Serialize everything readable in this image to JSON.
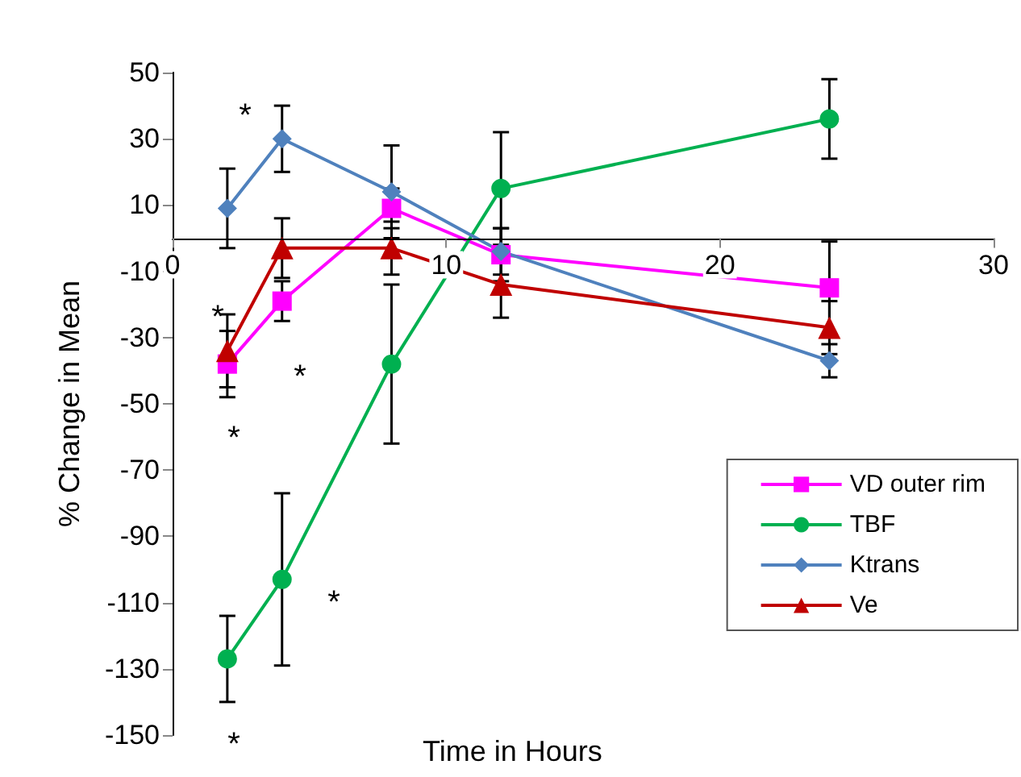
{
  "chart_data": {
    "type": "line",
    "xlabel": "Time in Hours",
    "ylabel": "% Change in Mean",
    "xlim": [
      0,
      30
    ],
    "xticks": [
      0,
      10,
      20,
      30
    ],
    "ylim": [
      -150,
      50
    ],
    "yticks": [
      -150,
      -130,
      -110,
      -90,
      -70,
      -50,
      -30,
      -10,
      10,
      30,
      50
    ],
    "grid": false,
    "legend": "right",
    "line_style": "solid",
    "x": [
      2,
      4,
      8,
      12,
      24
    ],
    "series": [
      {
        "name": "VD outer rim",
        "color": "#ff00ff",
        "marker": "square",
        "values": [
          -38,
          -19,
          9,
          -5,
          -15
        ],
        "errors": [
          10,
          6,
          6,
          8,
          14
        ]
      },
      {
        "name": "TBF",
        "color": "#00b050",
        "marker": "circle",
        "values": [
          -127,
          -103,
          -38,
          15,
          36
        ],
        "errors": [
          13,
          26,
          24,
          17,
          12
        ]
      },
      {
        "name": "Ktrans",
        "color": "#4f81bd",
        "marker": "diamond",
        "values": [
          9,
          30,
          14,
          -4,
          -37
        ],
        "errors": [
          12,
          10,
          14,
          7,
          5
        ]
      },
      {
        "name": "Ve",
        "color": "#c00000",
        "marker": "triangle",
        "values": [
          -34,
          -3,
          -3,
          -14,
          -27
        ],
        "errors": [
          11,
          9,
          8,
          10,
          8
        ]
      }
    ],
    "annotations": [
      "*",
      "*",
      "*",
      "*",
      "*",
      "*"
    ]
  }
}
